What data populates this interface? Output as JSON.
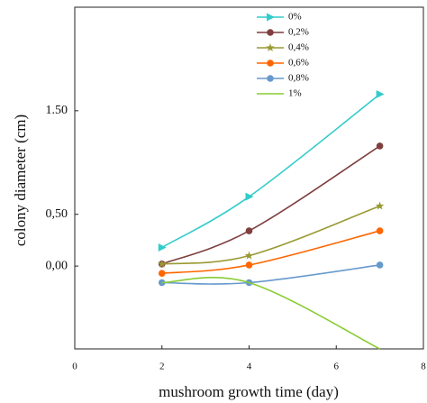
{
  "chart_data": {
    "type": "line",
    "x_label": "mushroom growth time (day)",
    "y_label": "colony diameter (cm)",
    "xlim": [
      0,
      8
    ],
    "xticks": [
      0,
      2,
      4,
      6,
      8
    ],
    "ylim": [
      -0.8,
      2.5
    ],
    "yticks": [
      {
        "value": 0,
        "label": "0,00"
      },
      {
        "value": 0.5,
        "label": "0,50"
      },
      {
        "value": 1.5,
        "label": "1.50"
      }
    ],
    "legend": "top",
    "series": [
      {
        "name": "0%",
        "color": "#33cccc",
        "marker": "triangle",
        "x": [
          2,
          4,
          7
        ],
        "values": [
          0.18,
          0.67,
          1.66
        ]
      },
      {
        "name": "0,2%",
        "color": "#7f3f3f",
        "marker": "circle",
        "x": [
          2,
          4,
          7
        ],
        "values": [
          0.02,
          0.34,
          1.16
        ]
      },
      {
        "name": "0,4%",
        "color": "#999933",
        "marker": "star",
        "x": [
          2,
          4,
          7
        ],
        "values": [
          0.02,
          0.1,
          0.58
        ]
      },
      {
        "name": "0,6%",
        "color": "#ff6600",
        "marker": "circle",
        "x": [
          2,
          4,
          7
        ],
        "values": [
          -0.07,
          0.01,
          0.34
        ]
      },
      {
        "name": "0,8%",
        "color": "#6699cc",
        "marker": "circle",
        "x": [
          2,
          4,
          7
        ],
        "values": [
          -0.16,
          -0.16,
          0.01
        ]
      },
      {
        "name": "1%",
        "color": "#88cc33",
        "marker": "none",
        "x": [
          2,
          4,
          7
        ],
        "values": [
          -0.16,
          -0.16,
          -0.8
        ]
      }
    ]
  }
}
